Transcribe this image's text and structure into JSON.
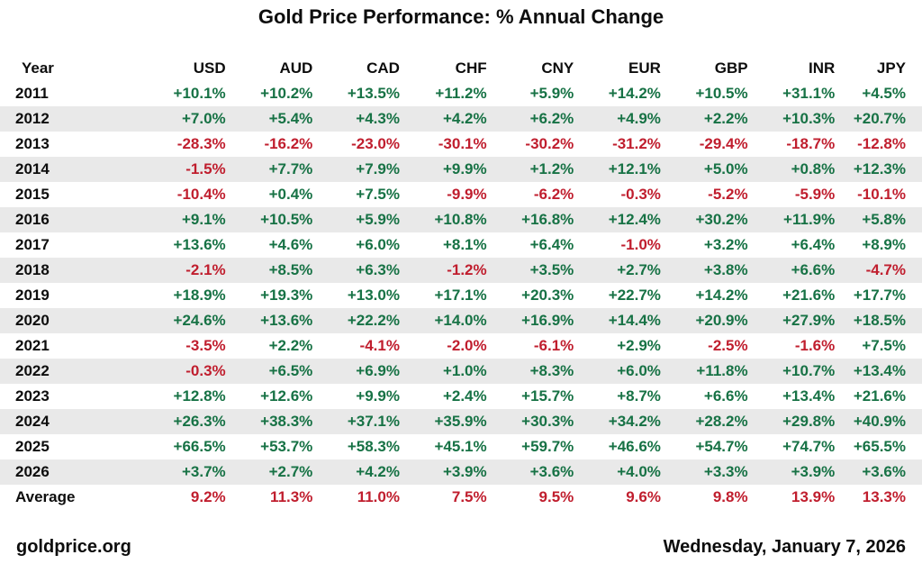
{
  "title": "Gold Price Performance: % Annual Change",
  "colors": {
    "positive": "#177245",
    "negative": "#c01e2e",
    "stripe": "#e9e9e9"
  },
  "table": {
    "columns": [
      "Year",
      "USD",
      "AUD",
      "CAD",
      "CHF",
      "CNY",
      "EUR",
      "GBP",
      "INR",
      "JPY"
    ],
    "rows": [
      {
        "year": "2011",
        "values": [
          "+10.1%",
          "+10.2%",
          "+13.5%",
          "+11.2%",
          "+5.9%",
          "+14.2%",
          "+10.5%",
          "+31.1%",
          "+4.5%"
        ]
      },
      {
        "year": "2012",
        "values": [
          "+7.0%",
          "+5.4%",
          "+4.3%",
          "+4.2%",
          "+6.2%",
          "+4.9%",
          "+2.2%",
          "+10.3%",
          "+20.7%"
        ]
      },
      {
        "year": "2013",
        "values": [
          "-28.3%",
          "-16.2%",
          "-23.0%",
          "-30.1%",
          "-30.2%",
          "-31.2%",
          "-29.4%",
          "-18.7%",
          "-12.8%"
        ]
      },
      {
        "year": "2014",
        "values": [
          "-1.5%",
          "+7.7%",
          "+7.9%",
          "+9.9%",
          "+1.2%",
          "+12.1%",
          "+5.0%",
          "+0.8%",
          "+12.3%"
        ]
      },
      {
        "year": "2015",
        "values": [
          "-10.4%",
          "+0.4%",
          "+7.5%",
          "-9.9%",
          "-6.2%",
          "-0.3%",
          "-5.2%",
          "-5.9%",
          "-10.1%"
        ]
      },
      {
        "year": "2016",
        "values": [
          "+9.1%",
          "+10.5%",
          "+5.9%",
          "+10.8%",
          "+16.8%",
          "+12.4%",
          "+30.2%",
          "+11.9%",
          "+5.8%"
        ]
      },
      {
        "year": "2017",
        "values": [
          "+13.6%",
          "+4.6%",
          "+6.0%",
          "+8.1%",
          "+6.4%",
          "-1.0%",
          "+3.2%",
          "+6.4%",
          "+8.9%"
        ]
      },
      {
        "year": "2018",
        "values": [
          "-2.1%",
          "+8.5%",
          "+6.3%",
          "-1.2%",
          "+3.5%",
          "+2.7%",
          "+3.8%",
          "+6.6%",
          "-4.7%"
        ]
      },
      {
        "year": "2019",
        "values": [
          "+18.9%",
          "+19.3%",
          "+13.0%",
          "+17.1%",
          "+20.3%",
          "+22.7%",
          "+14.2%",
          "+21.6%",
          "+17.7%"
        ]
      },
      {
        "year": "2020",
        "values": [
          "+24.6%",
          "+13.6%",
          "+22.2%",
          "+14.0%",
          "+16.9%",
          "+14.4%",
          "+20.9%",
          "+27.9%",
          "+18.5%"
        ]
      },
      {
        "year": "2021",
        "values": [
          "-3.5%",
          "+2.2%",
          "-4.1%",
          "-2.0%",
          "-6.1%",
          "+2.9%",
          "-2.5%",
          "-1.6%",
          "+7.5%"
        ]
      },
      {
        "year": "2022",
        "values": [
          "-0.3%",
          "+6.5%",
          "+6.9%",
          "+1.0%",
          "+8.3%",
          "+6.0%",
          "+11.8%",
          "+10.7%",
          "+13.4%"
        ]
      },
      {
        "year": "2023",
        "values": [
          "+12.8%",
          "+12.6%",
          "+9.9%",
          "+2.4%",
          "+15.7%",
          "+8.7%",
          "+6.6%",
          "+13.4%",
          "+21.6%"
        ]
      },
      {
        "year": "2024",
        "values": [
          "+26.3%",
          "+38.3%",
          "+37.1%",
          "+35.9%",
          "+30.3%",
          "+34.2%",
          "+28.2%",
          "+29.8%",
          "+40.9%"
        ]
      },
      {
        "year": "2025",
        "values": [
          "+66.5%",
          "+53.7%",
          "+58.3%",
          "+45.1%",
          "+59.7%",
          "+46.6%",
          "+54.7%",
          "+74.7%",
          "+65.5%"
        ]
      },
      {
        "year": "2026",
        "values": [
          "+3.7%",
          "+2.7%",
          "+4.2%",
          "+3.9%",
          "+3.6%",
          "+4.0%",
          "+3.3%",
          "+3.9%",
          "+3.6%"
        ]
      },
      {
        "year": "Average",
        "is_average": true,
        "values": [
          "9.2%",
          "11.3%",
          "11.0%",
          "7.5%",
          "9.5%",
          "9.6%",
          "9.8%",
          "13.9%",
          "13.3%"
        ]
      }
    ]
  },
  "footer": {
    "source": "goldprice.org",
    "date": "Wednesday, January 7, 2026"
  },
  "chart_data": {
    "type": "table",
    "title": "Gold Price Performance: % Annual Change",
    "categories": [
      "2011",
      "2012",
      "2013",
      "2014",
      "2015",
      "2016",
      "2017",
      "2018",
      "2019",
      "2020",
      "2021",
      "2022",
      "2023",
      "2024",
      "2025",
      "2026"
    ],
    "series": [
      {
        "name": "USD",
        "values": [
          10.1,
          7.0,
          -28.3,
          -1.5,
          -10.4,
          9.1,
          13.6,
          -2.1,
          18.9,
          24.6,
          -3.5,
          -0.3,
          12.8,
          26.3,
          66.5,
          3.7
        ]
      },
      {
        "name": "AUD",
        "values": [
          10.2,
          5.4,
          -16.2,
          7.7,
          0.4,
          10.5,
          4.6,
          8.5,
          19.3,
          13.6,
          2.2,
          6.5,
          12.6,
          38.3,
          53.7,
          2.7
        ]
      },
      {
        "name": "CAD",
        "values": [
          13.5,
          4.3,
          -23.0,
          7.9,
          7.5,
          5.9,
          6.0,
          6.3,
          13.0,
          22.2,
          -4.1,
          6.9,
          9.9,
          37.1,
          58.3,
          4.2
        ]
      },
      {
        "name": "CHF",
        "values": [
          11.2,
          4.2,
          -30.1,
          9.9,
          -9.9,
          10.8,
          8.1,
          -1.2,
          17.1,
          14.0,
          -2.0,
          1.0,
          2.4,
          35.9,
          45.1,
          3.9
        ]
      },
      {
        "name": "CNY",
        "values": [
          5.9,
          6.2,
          -30.2,
          1.2,
          -6.2,
          16.8,
          6.4,
          3.5,
          20.3,
          16.9,
          -6.1,
          8.3,
          15.7,
          30.3,
          59.7,
          3.6
        ]
      },
      {
        "name": "EUR",
        "values": [
          14.2,
          4.9,
          -31.2,
          12.1,
          -0.3,
          12.4,
          -1.0,
          2.7,
          22.7,
          14.4,
          2.9,
          6.0,
          8.7,
          34.2,
          46.6,
          4.0
        ]
      },
      {
        "name": "GBP",
        "values": [
          10.5,
          2.2,
          -29.4,
          5.0,
          -5.2,
          30.2,
          3.2,
          3.8,
          14.2,
          20.9,
          -2.5,
          11.8,
          6.6,
          28.2,
          54.7,
          3.3
        ]
      },
      {
        "name": "INR",
        "values": [
          31.1,
          10.3,
          -18.7,
          0.8,
          -5.9,
          11.9,
          6.4,
          6.6,
          21.6,
          27.9,
          -1.6,
          10.7,
          13.4,
          29.8,
          74.7,
          3.9
        ]
      },
      {
        "name": "JPY",
        "values": [
          4.5,
          20.7,
          -12.8,
          12.3,
          -10.1,
          5.8,
          8.9,
          -4.7,
          17.7,
          18.5,
          7.5,
          13.4,
          21.6,
          40.9,
          65.5,
          3.6
        ]
      }
    ],
    "averages": {
      "USD": 9.2,
      "AUD": 11.3,
      "CAD": 11.0,
      "CHF": 7.5,
      "CNY": 9.5,
      "EUR": 9.6,
      "GBP": 9.8,
      "INR": 13.9,
      "JPY": 13.3
    },
    "units": "% annual change",
    "value_color_positive": "#177245",
    "value_color_negative": "#c01e2e"
  }
}
